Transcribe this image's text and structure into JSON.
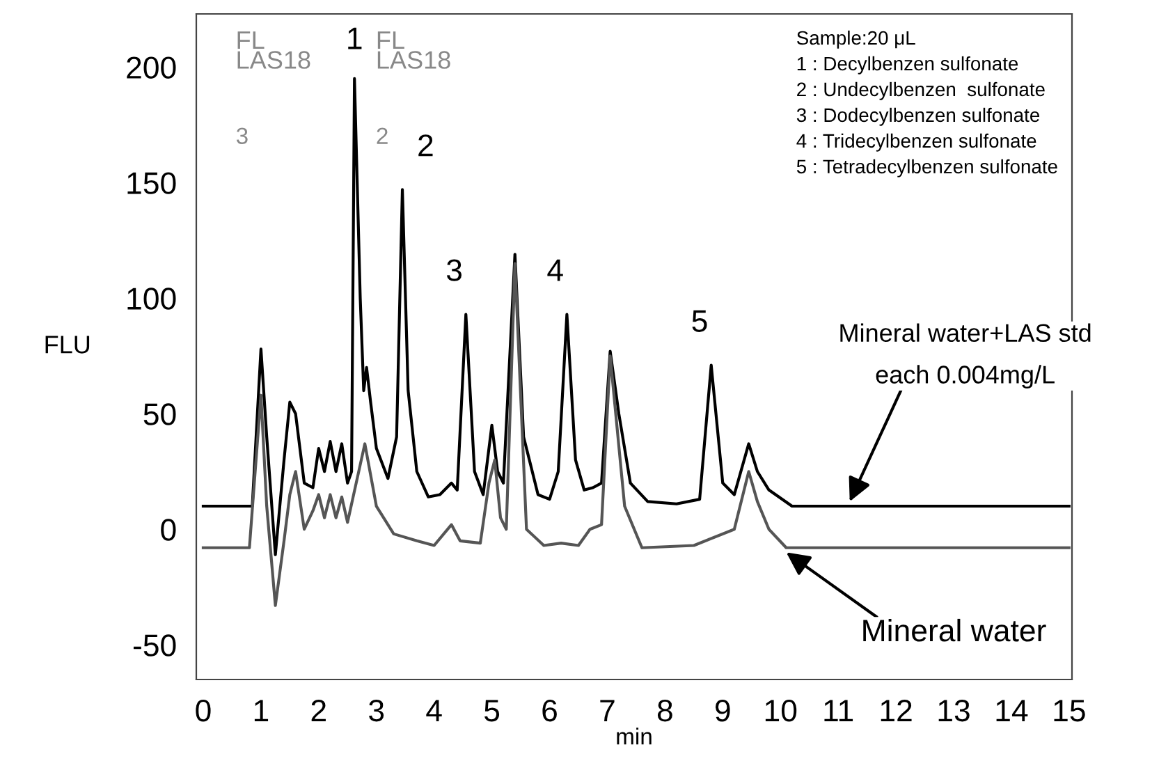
{
  "chart_data": {
    "type": "line",
    "xlabel": "min",
    "ylabel": "FLU",
    "xlim": [
      -0.12,
      15.05
    ],
    "ylim": [
      -65,
      223
    ],
    "xticks": [
      0,
      1,
      2,
      3,
      4,
      5,
      6,
      7,
      8,
      9,
      10,
      11,
      12,
      13,
      14,
      15
    ],
    "yticks": [
      -50,
      0,
      50,
      100,
      150,
      200
    ],
    "grid": false,
    "legend": false,
    "series": [
      {
        "color": "#000000",
        "x": [
          0,
          0.85,
          1.0,
          1.1,
          1.25,
          1.4,
          1.5,
          1.6,
          1.75,
          1.9,
          2.0,
          2.1,
          2.2,
          2.3,
          2.4,
          2.5,
          2.57,
          2.62,
          2.72,
          2.78,
          2.83,
          2.9,
          3.0,
          3.2,
          3.35,
          3.45,
          3.55,
          3.7,
          3.9,
          4.1,
          4.3,
          4.4,
          4.55,
          4.7,
          4.85,
          5.0,
          5.1,
          5.2,
          5.4,
          5.55,
          5.8,
          6.0,
          6.15,
          6.3,
          6.45,
          6.6,
          6.75,
          6.9,
          7.05,
          7.2,
          7.4,
          7.7,
          8.2,
          8.6,
          8.8,
          9.0,
          9.2,
          9.45,
          9.6,
          9.8,
          10.2,
          15
        ],
        "values": [
          10,
          10,
          78,
          40,
          -11,
          30,
          55,
          50,
          20,
          18,
          35,
          25,
          38,
          25,
          37,
          20,
          25,
          195,
          100,
          60,
          70,
          55,
          35,
          22,
          40,
          147,
          60,
          25,
          14,
          15,
          20,
          17,
          93,
          25,
          15,
          45,
          25,
          20,
          119,
          40,
          15,
          13,
          25,
          93,
          30,
          17,
          18,
          20,
          77,
          50,
          20,
          12,
          11,
          13,
          71,
          20,
          15,
          37,
          25,
          17,
          10,
          10
        ]
      },
      {
        "color": "#555555",
        "x": [
          0,
          0.8,
          1.0,
          1.1,
          1.25,
          1.4,
          1.5,
          1.6,
          1.75,
          1.9,
          2.0,
          2.1,
          2.2,
          2.3,
          2.4,
          2.5,
          2.8,
          3.0,
          3.3,
          3.7,
          4.0,
          4.3,
          4.45,
          4.8,
          4.95,
          5.05,
          5.15,
          5.25,
          5.4,
          5.6,
          5.9,
          6.2,
          6.5,
          6.7,
          6.9,
          7.05,
          7.3,
          7.6,
          8.5,
          9.2,
          9.45,
          9.6,
          9.8,
          10.1,
          15
        ],
        "values": [
          -8,
          -8,
          58,
          10,
          -33,
          -5,
          15,
          25,
          0,
          8,
          15,
          5,
          15,
          5,
          14,
          3,
          37,
          10,
          -2,
          -5,
          -7,
          2,
          -5,
          -6,
          20,
          30,
          5,
          0,
          115,
          0,
          -7,
          -6,
          -7,
          0,
          2,
          75,
          10,
          -8,
          -7,
          0,
          25,
          12,
          0,
          -8,
          -8
        ]
      }
    ],
    "annotations": [
      {
        "text": "1",
        "x": 2.62,
        "y": 195
      },
      {
        "text": "2",
        "x": 3.45,
        "y": 147
      },
      {
        "text": "3",
        "x": 4.55,
        "y": 93
      },
      {
        "text": "4",
        "x": 6.3,
        "y": 93
      },
      {
        "text": "5",
        "x": 8.8,
        "y": 71
      },
      {
        "text": "Mineral water+LAS std\neach 0.004mg/L",
        "x": 11.2,
        "y": 12
      },
      {
        "text": "Mineral water",
        "x": 10.1,
        "y": -10
      },
      "FL\nLAS18",
      "3",
      "FL\nLAS18",
      "2",
      "Sample:20 μL\n1 : Decylbenzen sulfonate\n2 : Undecylbenzen  sulfonate\n3 : Dodecylbenzen sulfonate\n4 : Tridecylbenzen sulfonate\n5 : Tetradecylbenzen sulfonate"
    ]
  }
}
